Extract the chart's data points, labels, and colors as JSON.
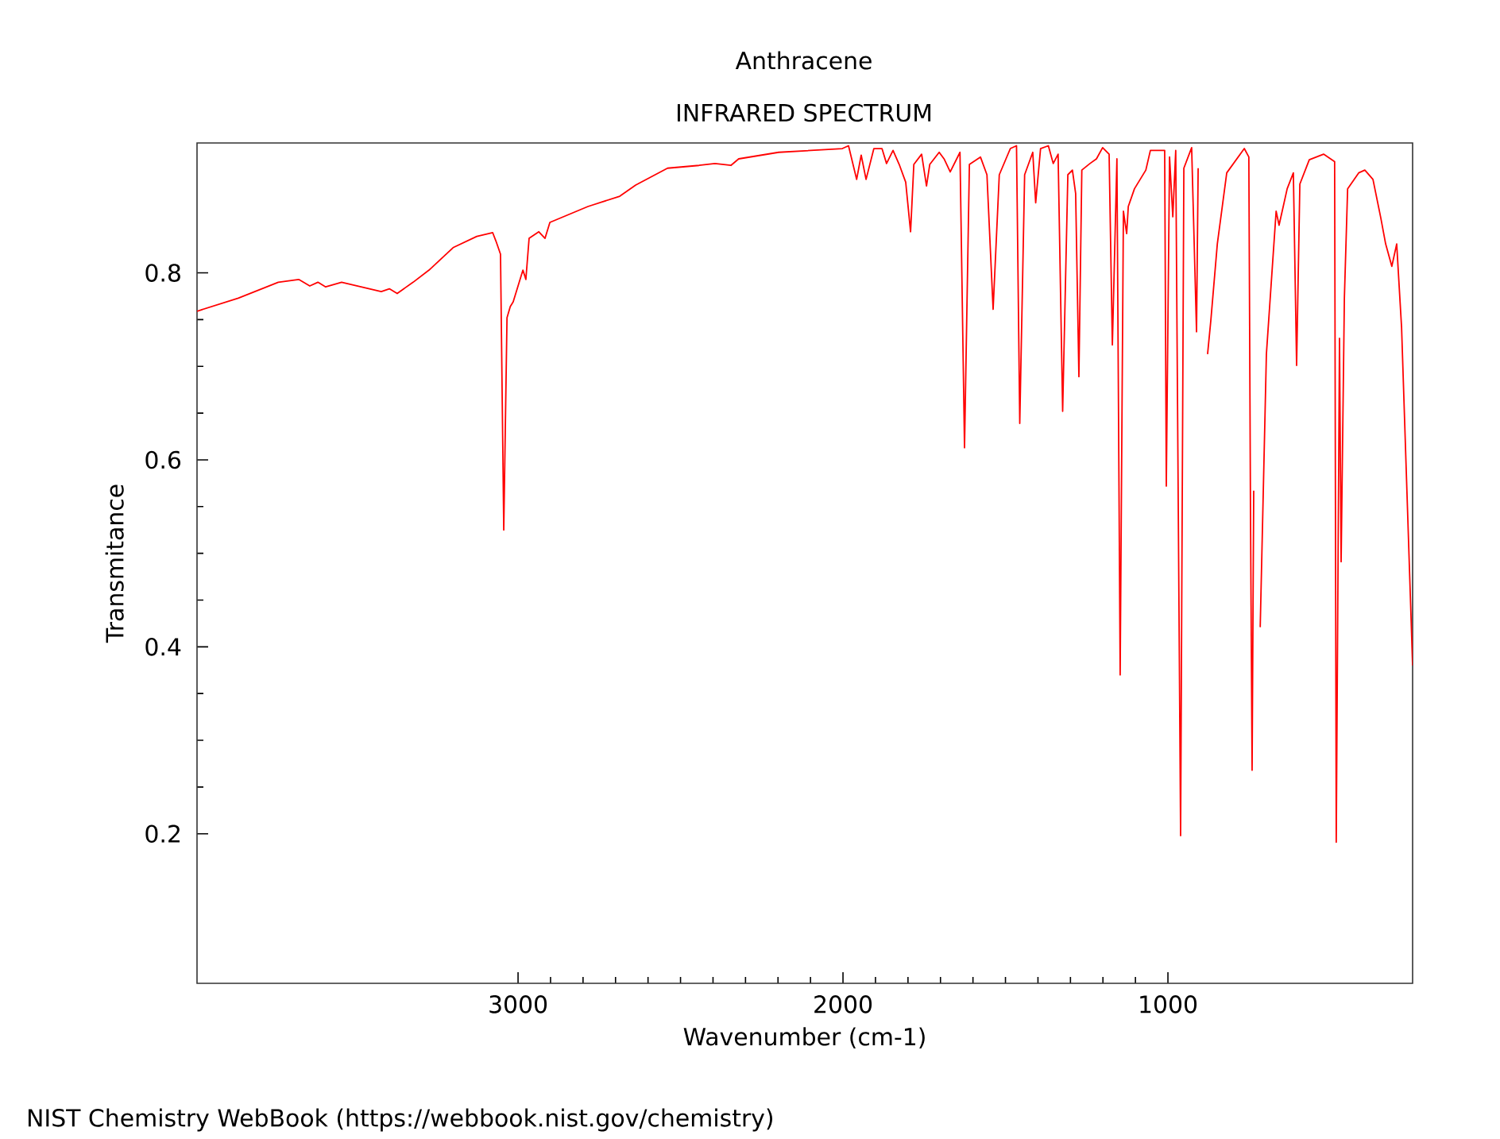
{
  "chart_data": {
    "type": "line",
    "title": "Anthracene",
    "subtitle": "INFRARED SPECTRUM",
    "xlabel": "Wavenumber (cm-1)",
    "ylabel": "Transmitance",
    "annotations": [
      "NIST Chemistry WebBook (https://webbook.nist.gov/chemistry)"
    ],
    "xlim": [
      3988,
      247
    ],
    "ylim": [
      0.04,
      0.939
    ],
    "xticks": [
      3000,
      2000,
      1000
    ],
    "yticks": [
      0.2,
      0.4,
      0.6,
      0.8
    ],
    "series": [
      {
        "color": "#ff0000",
        "x": [
          3988,
          3861,
          3738,
          3675,
          3641,
          3616,
          3592,
          3543,
          3421,
          3396,
          3372,
          3323,
          3274,
          3200,
          3127,
          3078,
          3068,
          3054,
          3044,
          3034,
          3024,
          3015,
          3000,
          2985,
          2976,
          2966,
          2936,
          2917,
          2902,
          2785,
          2687,
          2638,
          2540,
          2443,
          2394,
          2345,
          2321,
          2198,
          2002,
          1983,
          1958,
          1944,
          1929,
          1905,
          1880,
          1866,
          1846,
          1827,
          1807,
          1792,
          1782,
          1758,
          1743,
          1733,
          1704,
          1689,
          1670,
          1640,
          1626,
          1611,
          1577,
          1557,
          1538,
          1519,
          1485,
          1466,
          1456,
          1441,
          1416,
          1407,
          1392,
          1368,
          1353,
          1338,
          1324,
          1308,
          1294,
          1284,
          1274,
          1265,
          1240,
          1220,
          1201,
          1181,
          1171,
          1157,
          1147,
          1137,
          1127,
          1122,
          1103,
          1068,
          1054,
          1010,
          1005,
          995,
          985,
          976,
          961,
          951,
          927,
          912,
          907,
          897,
          878,
          868,
          848,
          819,
          765,
          751,
          746,
          741,
          736,
          731,
          716,
          697,
          667,
          658,
          633,
          614,
          604,
          594,
          565,
          521,
          487,
          482,
          472,
          467,
          457,
          447,
          413,
          394,
          369,
          345,
          330,
          311,
          296,
          281,
          247
        ],
        "values": [
          0.759,
          0.773,
          0.79,
          0.793,
          0.786,
          0.79,
          0.785,
          0.79,
          0.78,
          0.783,
          0.778,
          0.79,
          0.803,
          0.827,
          0.839,
          0.843,
          0.834,
          0.82,
          0.525,
          0.752,
          0.764,
          0.769,
          0.786,
          0.803,
          0.793,
          0.837,
          0.844,
          0.837,
          0.854,
          0.871,
          0.882,
          0.894,
          0.912,
          0.915,
          0.917,
          0.915,
          0.922,
          0.929,
          0.933,
          0.936,
          0.9,
          0.926,
          0.9,
          0.933,
          0.933,
          0.917,
          0.931,
          0.916,
          0.897,
          0.844,
          0.916,
          0.927,
          0.893,
          0.916,
          0.929,
          0.922,
          0.908,
          0.929,
          0.613,
          0.916,
          0.924,
          0.905,
          0.761,
          0.905,
          0.933,
          0.936,
          0.639,
          0.905,
          0.929,
          0.875,
          0.933,
          0.936,
          0.917,
          0.927,
          0.652,
          0.905,
          0.91,
          0.885,
          0.689,
          0.91,
          0.917,
          0.922,
          0.934,
          0.927,
          0.723,
          0.922,
          0.37,
          0.866,
          0.842,
          0.871,
          0.89,
          0.91,
          0.931,
          0.931,
          0.572,
          0.924,
          0.86,
          0.931,
          0.198,
          0.912,
          0.934,
          0.737,
          0.912,
          null,
          0.713,
          0.749,
          0.831,
          0.907,
          0.933,
          0.924,
          0.55,
          0.268,
          0.567,
          null,
          0.421,
          0.713,
          0.866,
          0.851,
          0.89,
          0.907,
          0.701,
          0.895,
          0.921,
          0.927,
          0.919,
          0.191,
          0.73,
          0.491,
          0.773,
          0.89,
          0.907,
          0.91,
          0.9,
          0.859,
          0.831,
          0.807,
          0.831,
          0.742,
          0.38
        ]
      }
    ]
  }
}
